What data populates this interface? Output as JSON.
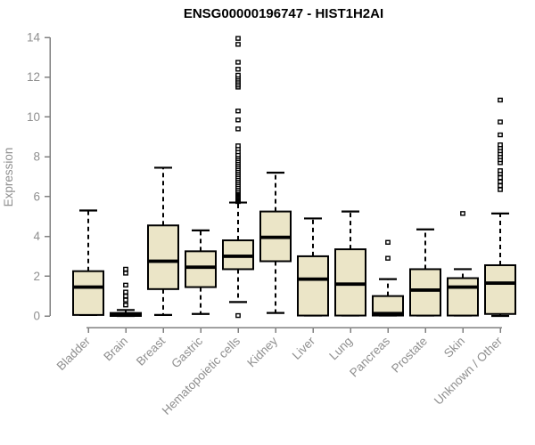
{
  "chart_data": {
    "type": "boxplot",
    "title": "ENSG00000196747 - HIST1H2AI",
    "ylabel": "Expression",
    "xlabel": "",
    "ylim": [
      0,
      14
    ],
    "yticks": [
      0,
      2,
      4,
      6,
      8,
      10,
      12,
      14
    ],
    "grid": false,
    "legend": "none",
    "categories": [
      "Bladder",
      "Brain",
      "Breast",
      "Gastric",
      "Hematopoietic cells",
      "Kidney",
      "Liver",
      "Lung",
      "Pancreas",
      "Prostate",
      "Skin",
      "Unknown / Other"
    ],
    "boxes": [
      {
        "category": "Bladder",
        "low": 0.05,
        "q1": 0.05,
        "median": 1.45,
        "q3": 2.25,
        "high": 5.3,
        "outliers": []
      },
      {
        "category": "Brain",
        "low": 0.0,
        "q1": 0.0,
        "median": 0.05,
        "q3": 0.15,
        "high": 0.3,
        "outliers": [
          0.55,
          0.8,
          1.0,
          1.2,
          1.55,
          2.15,
          2.35
        ]
      },
      {
        "category": "Breast",
        "low": 0.05,
        "q1": 1.35,
        "median": 2.75,
        "q3": 4.55,
        "high": 7.45,
        "outliers": []
      },
      {
        "category": "Gastric",
        "low": 0.1,
        "q1": 1.45,
        "median": 2.45,
        "q3": 3.25,
        "high": 4.3,
        "outliers": []
      },
      {
        "category": "Hematopoietic cells",
        "low": 0.7,
        "q1": 2.35,
        "median": 3.0,
        "q3": 3.8,
        "high": 5.7,
        "outliers": [
          0.02,
          5.75,
          5.8,
          5.85,
          5.9,
          5.95,
          6.0,
          6.05,
          6.1,
          6.15,
          6.2,
          6.25,
          6.3,
          6.4,
          6.5,
          6.6,
          6.7,
          6.8,
          6.9,
          7.0,
          7.1,
          7.2,
          7.3,
          7.4,
          7.5,
          7.6,
          7.7,
          7.8,
          7.9,
          8.0,
          8.1,
          8.25,
          8.4,
          8.55,
          9.4,
          9.85,
          10.3,
          11.5,
          11.6,
          11.7,
          11.8,
          11.9,
          12.0,
          12.1,
          12.4,
          12.75,
          13.65,
          13.95
        ]
      },
      {
        "category": "Kidney",
        "low": 0.15,
        "q1": 2.75,
        "median": 3.95,
        "q3": 5.25,
        "high": 7.2,
        "outliers": []
      },
      {
        "category": "Liver",
        "low": 0.02,
        "q1": 0.02,
        "median": 1.85,
        "q3": 3.0,
        "high": 4.9,
        "outliers": []
      },
      {
        "category": "Lung",
        "low": 0.02,
        "q1": 0.02,
        "median": 1.6,
        "q3": 3.35,
        "high": 5.25,
        "outliers": []
      },
      {
        "category": "Pancreas",
        "low": 0.02,
        "q1": 0.02,
        "median": 0.12,
        "q3": 1.0,
        "high": 1.85,
        "outliers": [
          2.9,
          3.7
        ]
      },
      {
        "category": "Prostate",
        "low": 0.02,
        "q1": 0.02,
        "median": 1.3,
        "q3": 2.35,
        "high": 4.35,
        "outliers": []
      },
      {
        "category": "Skin",
        "low": 0.02,
        "q1": 0.02,
        "median": 1.45,
        "q3": 1.9,
        "high": 2.35,
        "outliers": [
          5.15
        ]
      },
      {
        "category": "Unknown / Other",
        "low": 0.0,
        "q1": 0.1,
        "median": 1.65,
        "q3": 2.55,
        "high": 5.15,
        "outliers": [
          6.35,
          6.55,
          6.75,
          6.95,
          7.15,
          7.3,
          7.7,
          7.85,
          8.0,
          8.15,
          8.3,
          8.45,
          8.6,
          9.1,
          9.75,
          10.85
        ]
      }
    ],
    "colors": {
      "box_fill": "#EBE5C7",
      "box_border": "#000000",
      "median": "#000000",
      "whisker": "#000000",
      "outlier_stroke": "#000000",
      "outlier_fill": "#ffffff",
      "axis": "#808080",
      "tick_label": "#8f8f8f",
      "title": "#000000"
    }
  }
}
